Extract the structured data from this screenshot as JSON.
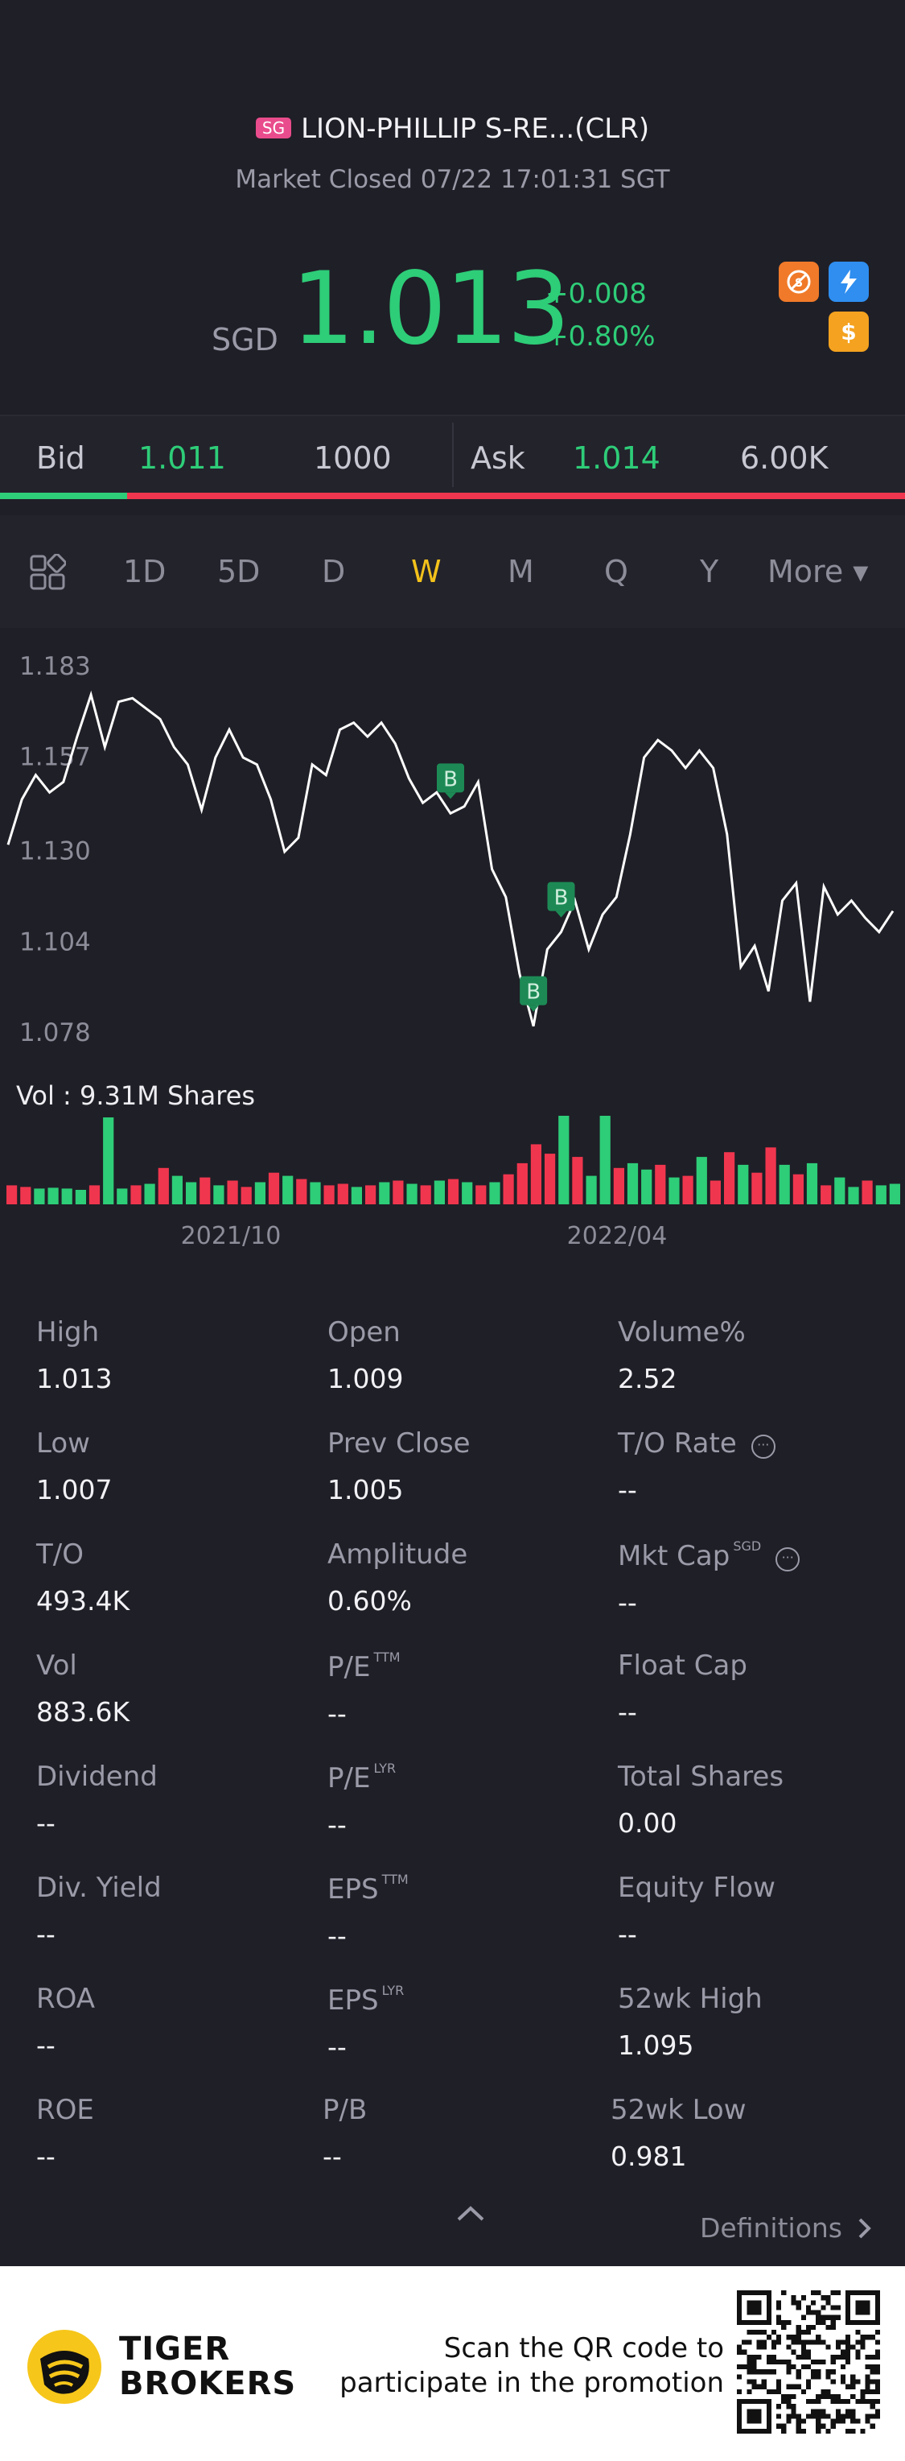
{
  "header": {
    "market_badge": "SG",
    "stock_name": "LION-PHILLIP S-RE...(CLR)",
    "status": "Market Closed 07/22 17:01:31 SGT",
    "currency": "SGD",
    "last_price": "1.013",
    "change_abs": "+0.008",
    "change_pct": "+0.80%",
    "price_color": "#2ecd78",
    "icons": [
      "short-sell-icon",
      "flash-icon",
      "dollar-icon"
    ]
  },
  "quote": {
    "bid_label": "Bid",
    "bid_price": "1.011",
    "bid_size": "1000",
    "ask_label": "Ask",
    "ask_price": "1.014",
    "ask_size": "6.00K",
    "bid_ratio": 0.14
  },
  "tabs": {
    "items": [
      "1D",
      "5D",
      "D",
      "W",
      "M",
      "Q",
      "Y",
      "More ▾"
    ],
    "active": "W"
  },
  "chart_data": {
    "type": "line",
    "y_ticks": [
      "1.183",
      "1.157",
      "1.130",
      "1.104",
      "1.078"
    ],
    "ylim": [
      1.078,
      1.183
    ],
    "x_ticks": [
      "2021/10",
      "2022/04"
    ],
    "marker_label": "B",
    "volume_label": "Vol  : 9.31M Shares",
    "price": [
      1.137,
      1.15,
      1.157,
      1.152,
      1.155,
      1.168,
      1.18,
      1.165,
      1.178,
      1.179,
      1.176,
      1.173,
      1.165,
      1.16,
      1.147,
      1.162,
      1.17,
      1.162,
      1.16,
      1.15,
      1.135,
      1.139,
      1.16,
      1.157,
      1.17,
      1.172,
      1.168,
      1.172,
      1.166,
      1.156,
      1.149,
      1.152,
      1.146,
      1.148,
      1.155,
      1.13,
      1.122,
      1.1,
      1.085,
      1.107,
      1.112,
      1.121,
      1.107,
      1.117,
      1.122,
      1.14,
      1.162,
      1.167,
      1.164,
      1.159,
      1.164,
      1.159,
      1.14,
      1.102,
      1.108,
      1.095,
      1.121,
      1.126,
      1.092,
      1.125,
      1.117,
      1.121,
      1.116,
      1.112,
      1.118
    ],
    "volume_shares_k": [
      120,
      110,
      100,
      105,
      100,
      90,
      120,
      550,
      100,
      120,
      130,
      230,
      180,
      140,
      170,
      120,
      150,
      110,
      140,
      200,
      180,
      160,
      140,
      120,
      130,
      110,
      120,
      140,
      150,
      130,
      120,
      150,
      160,
      140,
      120,
      140,
      190,
      260,
      380,
      320,
      560,
      300,
      180,
      560,
      230,
      260,
      220,
      250,
      170,
      180,
      300,
      150,
      330,
      250,
      200,
      360,
      250,
      190,
      260,
      120,
      170,
      110,
      150,
      120,
      130
    ],
    "volume_up": [
      false,
      false,
      true,
      true,
      true,
      true,
      false,
      true,
      true,
      false,
      true,
      false,
      true,
      true,
      false,
      true,
      false,
      false,
      true,
      false,
      true,
      false,
      true,
      false,
      false,
      true,
      false,
      true,
      false,
      true,
      false,
      true,
      false,
      true,
      false,
      true,
      false,
      false,
      false,
      false,
      true,
      false,
      true,
      true,
      false,
      true,
      true,
      false,
      true,
      false,
      true,
      false,
      false,
      true,
      false,
      false,
      true,
      false,
      true,
      false,
      true,
      true,
      false,
      true,
      true
    ],
    "up_color": "#2ecd78",
    "down_color": "#f0364e",
    "line_color": "#ffffff"
  },
  "stats": {
    "high_label": "High",
    "high": "1.013",
    "open_label": "Open",
    "open": "1.009",
    "volpct_label": "Volume%",
    "volpct": "2.52",
    "low_label": "Low",
    "low": "1.007",
    "prevclose_label": "Prev Close",
    "prevclose": "1.005",
    "torate_label": "T/O Rate",
    "torate": "--",
    "to_label": "T/O",
    "to": "493.4K",
    "amplitude_label": "Amplitude",
    "amplitude": "0.60%",
    "mktcap_label": "Mkt Cap",
    "mktcap_sup": "SGD",
    "mktcap": "--",
    "vol_label": "Vol",
    "vol": "883.6K",
    "pe_ttm_label": "P/E",
    "pe_ttm_sup": "TTM",
    "pe_ttm": "--",
    "floatcap_label": "Float Cap",
    "floatcap": "--",
    "dividend_label": "Dividend",
    "dividend": "--",
    "pe_lyr_label": "P/E",
    "pe_lyr_sup": "LYR",
    "pe_lyr": "--",
    "totalshares_label": "Total Shares",
    "totalshares": "0.00",
    "divyield_label": "Div. Yield",
    "divyield": "--",
    "eps_ttm_label": "EPS",
    "eps_ttm_sup": "TTM",
    "eps_ttm": "--",
    "equityflow_label": "Equity Flow",
    "equityflow": "--",
    "roa_label": "ROA",
    "roa": "--",
    "eps_lyr_label": "EPS",
    "eps_lyr_sup": "LYR",
    "eps_lyr": "--",
    "high52_label": "52wk High",
    "high52": "1.095",
    "roe_label": "ROE",
    "roe": "--",
    "pb_label": "P/B",
    "pb": "--",
    "low52_label": "52wk Low",
    "low52": "0.981",
    "info_glyph": "···"
  },
  "footer": {
    "definitions": "Definitions",
    "brand_line1": "TIGER",
    "brand_line2": "BROKERS",
    "promo_line1": "Scan the QR code to",
    "promo_line2": "participate in the promotion"
  }
}
